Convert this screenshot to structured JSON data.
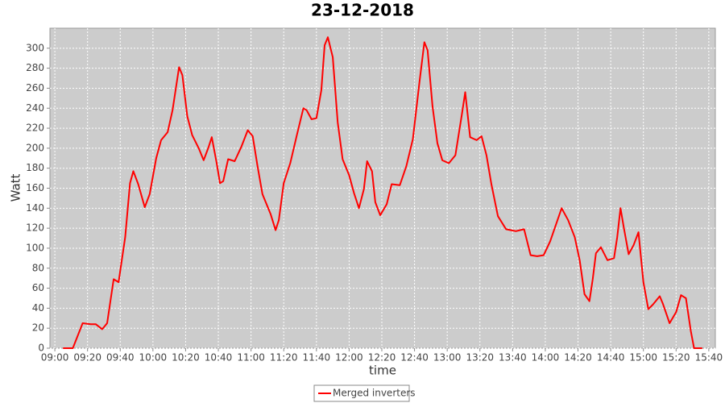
{
  "chart_data": {
    "type": "line",
    "title": "23-12-2018",
    "x_label": "time",
    "y_label": "Watt",
    "x": [
      "09:05",
      "09:11",
      "09:17",
      "09:22",
      "09:25",
      "09:29",
      "09:32",
      "09:36",
      "09:39",
      "09:43",
      "09:46",
      "09:48",
      "09:51",
      "09:55",
      "09:58",
      "10:02",
      "10:05",
      "10:09",
      "10:12",
      "10:16",
      "10:18",
      "10:21",
      "10:24",
      "10:28",
      "10:31",
      "10:34",
      "10:36",
      "10:39",
      "10:41",
      "10:43",
      "10:46",
      "10:50",
      "10:54",
      "10:58",
      "11:01",
      "11:04",
      "11:07",
      "11:12",
      "11:15",
      "11:17",
      "11:20",
      "11:24",
      "11:28",
      "11:32",
      "11:34",
      "11:37",
      "11:40",
      "11:43",
      "11:45",
      "11:47",
      "11:50",
      "11:53",
      "11:56",
      "12:00",
      "12:03",
      "12:06",
      "12:09",
      "12:11",
      "12:14",
      "12:16",
      "12:19",
      "12:23",
      "12:26",
      "12:31",
      "12:35",
      "12:39",
      "12:43",
      "12:46",
      "12:48",
      "12:51",
      "12:54",
      "12:57",
      "13:01",
      "13:05",
      "13:09",
      "13:11",
      "13:14",
      "13:18",
      "13:21",
      "13:24",
      "13:27",
      "13:31",
      "13:36",
      "13:42",
      "13:47",
      "13:51",
      "13:55",
      "13:59",
      "14:03",
      "14:10",
      "14:14",
      "14:18",
      "14:21",
      "14:24",
      "14:27",
      "14:29",
      "14:31",
      "14:34",
      "14:38",
      "14:42",
      "14:44",
      "14:46",
      "14:48",
      "14:51",
      "14:54",
      "14:57",
      "15:00",
      "15:03",
      "15:06",
      "15:10",
      "15:12",
      "15:16",
      "15:20",
      "15:23",
      "15:26",
      "15:29",
      "15:31",
      "15:36"
    ],
    "series": [
      {
        "name": "Merged inverters",
        "color": "#ff0000",
        "values": [
          0,
          0,
          25,
          24,
          24,
          19,
          25,
          69,
          66,
          111,
          165,
          177,
          164,
          141,
          154,
          190,
          208,
          216,
          238,
          281,
          273,
          232,
          213,
          200,
          188,
          201,
          211,
          185,
          165,
          167,
          189,
          187,
          201,
          218,
          212,
          182,
          154,
          134,
          118,
          128,
          165,
          185,
          213,
          240,
          238,
          229,
          230,
          258,
          303,
          311,
          291,
          226,
          189,
          173,
          155,
          140,
          159,
          187,
          177,
          146,
          133,
          144,
          164,
          163,
          182,
          209,
          266,
          306,
          298,
          242,
          205,
          188,
          185,
          193,
          234,
          256,
          211,
          208,
          212,
          193,
          164,
          132,
          119,
          117,
          119,
          93,
          92,
          93,
          107,
          140,
          128,
          111,
          88,
          54,
          47,
          69,
          95,
          101,
          88,
          90,
          111,
          140,
          121,
          94,
          103,
          116,
          66,
          39,
          44,
          52,
          44,
          25,
          36,
          53,
          50,
          17,
          0,
          0
        ]
      }
    ],
    "xlim": [
      "08:57",
      "15:44"
    ],
    "xticks": [
      "09:00",
      "09:20",
      "09:40",
      "10:00",
      "10:20",
      "10:40",
      "11:00",
      "11:20",
      "11:40",
      "12:00",
      "12:20",
      "12:40",
      "13:00",
      "13:20",
      "13:40",
      "14:00",
      "14:20",
      "14:40",
      "15:00",
      "15:20",
      "15:40"
    ],
    "ylim": [
      0,
      320
    ],
    "yticks": [
      0,
      20,
      40,
      60,
      80,
      100,
      120,
      140,
      160,
      180,
      200,
      220,
      240,
      260,
      280,
      300
    ],
    "grid": true,
    "legend": "bottom"
  }
}
